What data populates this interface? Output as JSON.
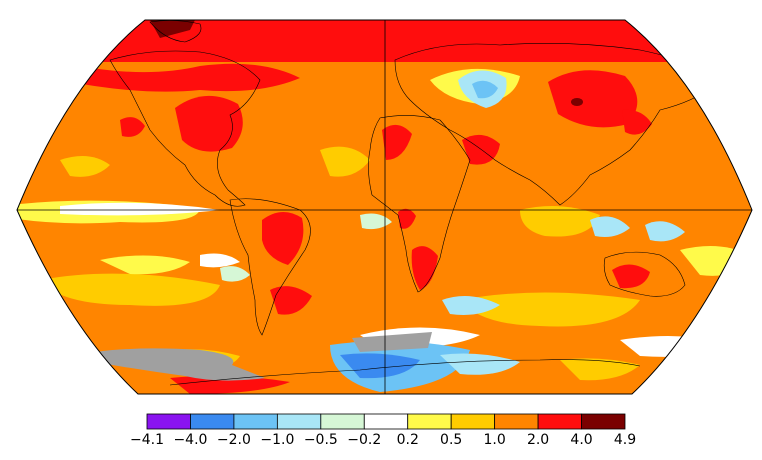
{
  "map": {
    "projection": "Robinson",
    "land_outlines": true,
    "gridlines": [
      "equator",
      "prime-meridian"
    ],
    "missing_data_color": "#a0a0a0"
  },
  "legend": {
    "bins": [
      {
        "color": "#8a14f0"
      },
      {
        "color": "#3a8af0"
      },
      {
        "color": "#6cc3f5"
      },
      {
        "color": "#a9e6f7"
      },
      {
        "color": "#d6f7d6"
      },
      {
        "color": "#ffffff"
      },
      {
        "color": "#fffa4a"
      },
      {
        "color": "#ffcc00"
      },
      {
        "color": "#ff8500"
      },
      {
        "color": "#ff0d0d"
      },
      {
        "color": "#7a0000"
      }
    ],
    "tick_labels": [
      "−4.1",
      "−4.0",
      "−2.0",
      "−1.0",
      "−0.5",
      "−0.2",
      "0.2",
      "0.5",
      "1.0",
      "2.0",
      "4.0",
      "4.9"
    ]
  }
}
